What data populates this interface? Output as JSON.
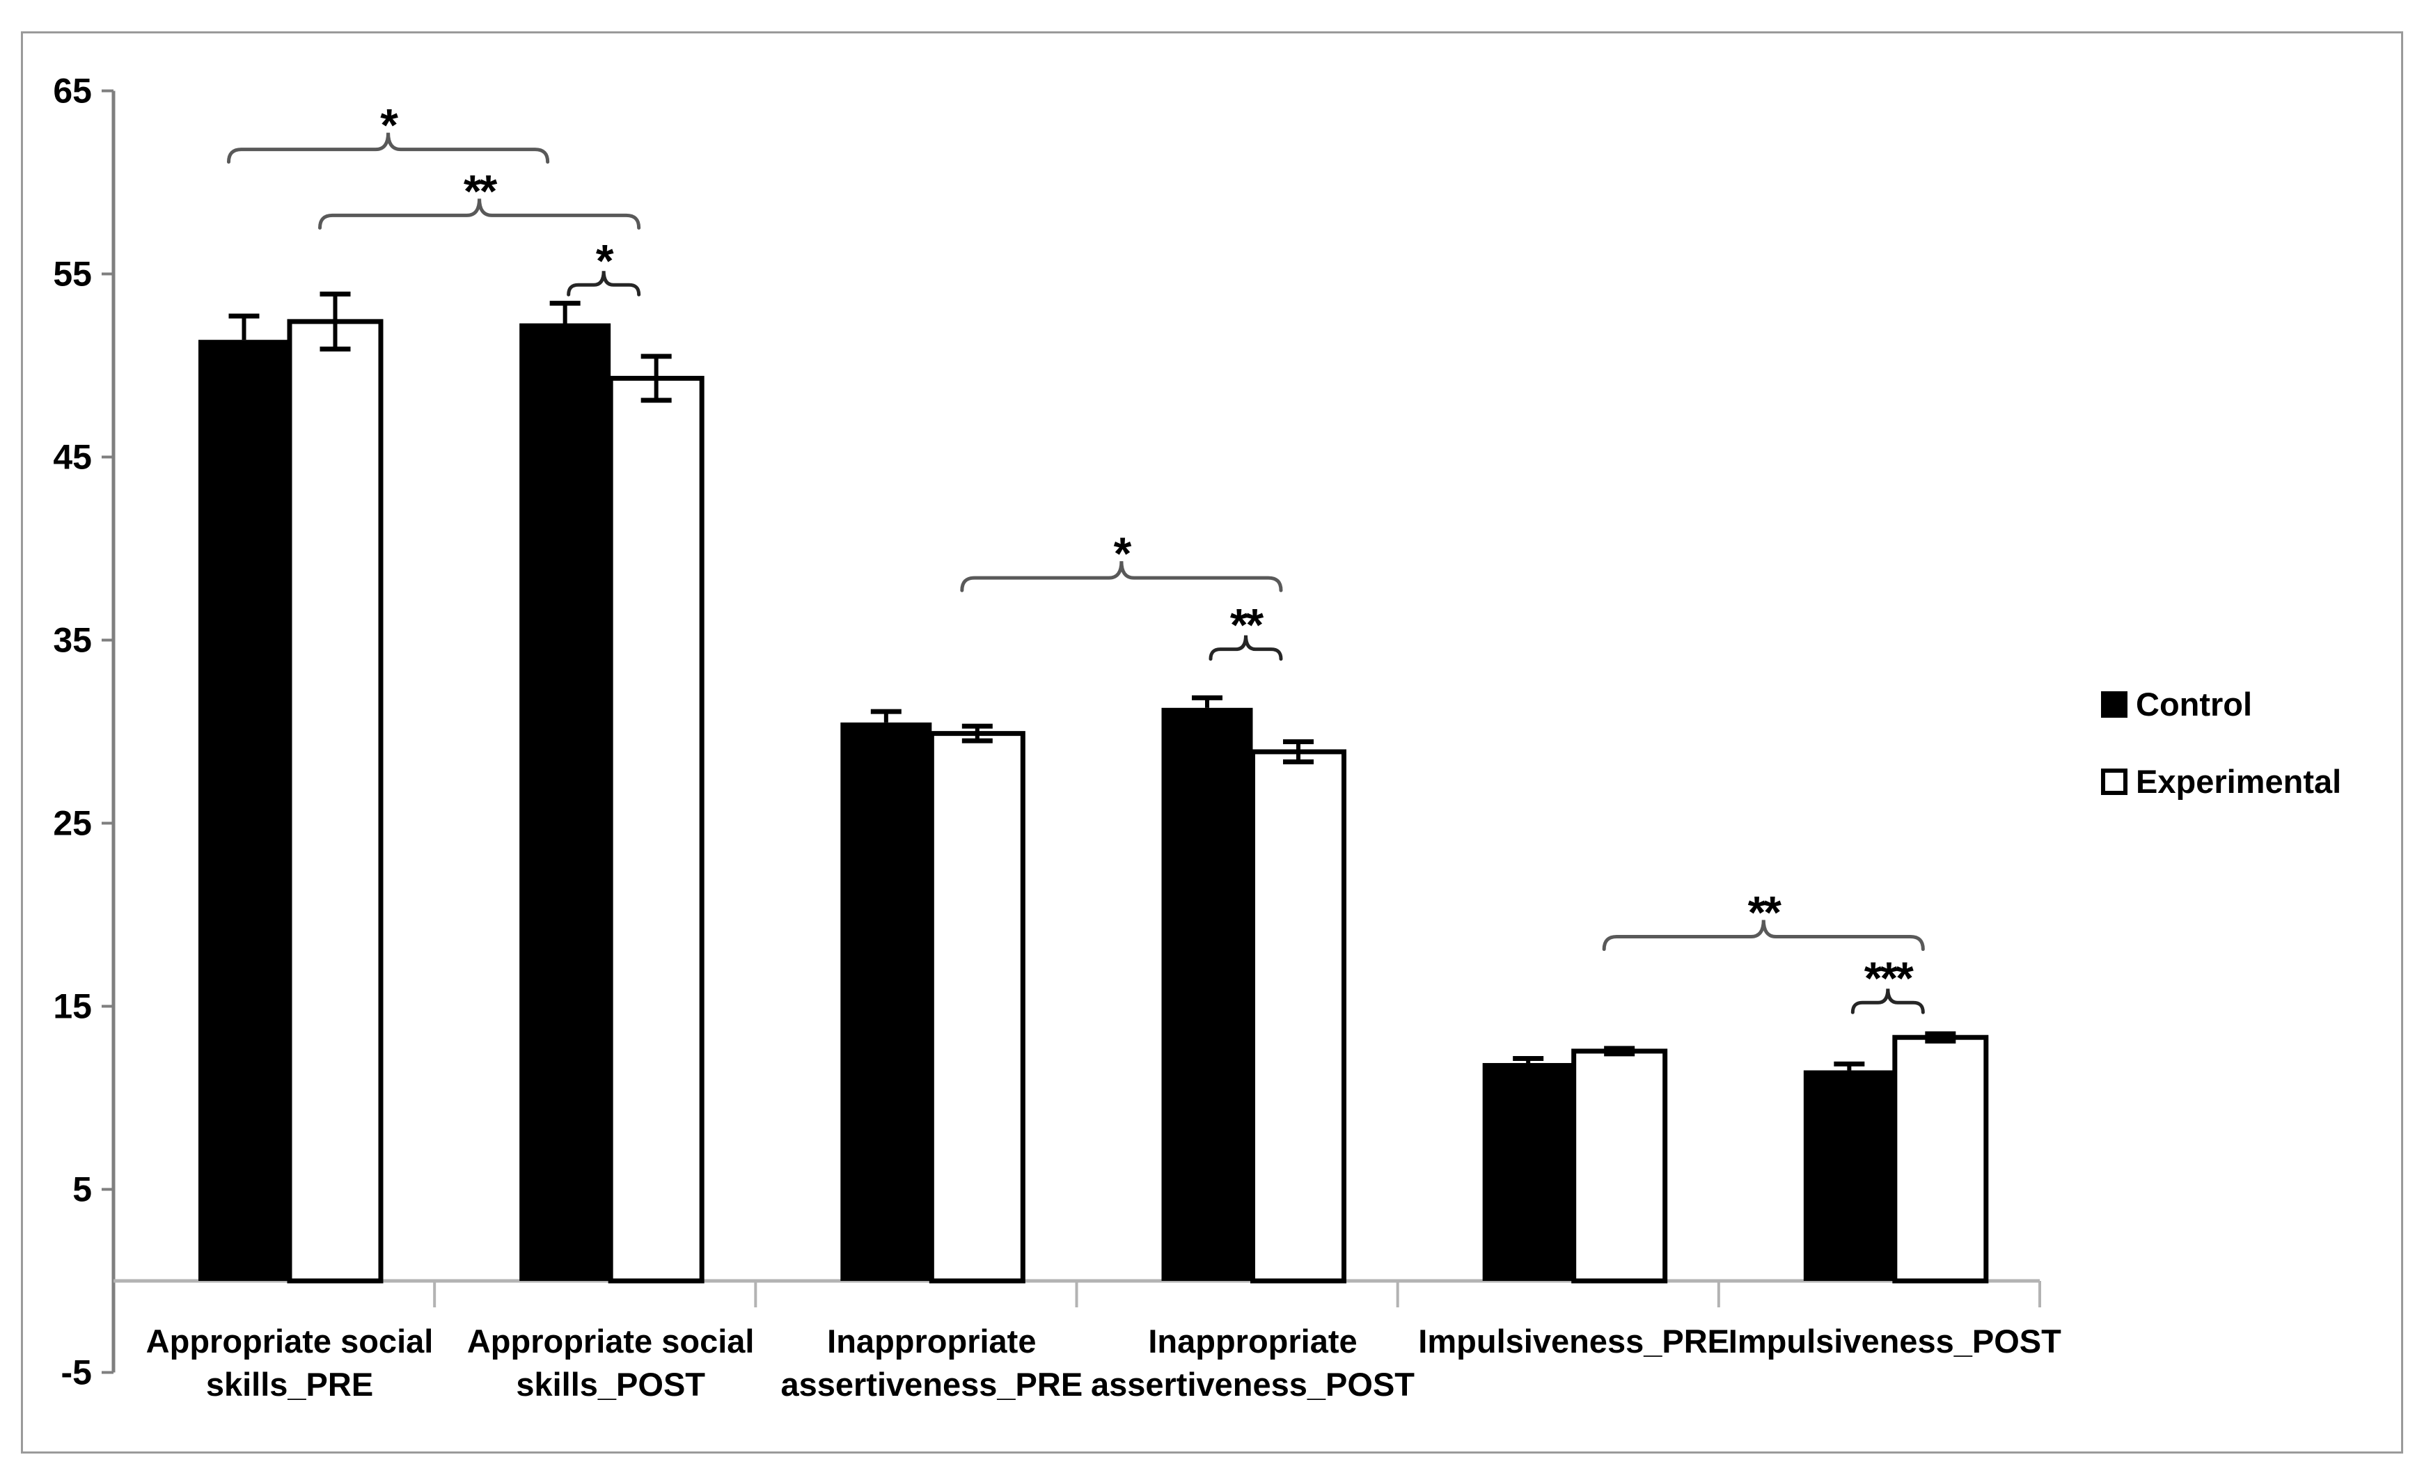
{
  "chart_data": {
    "type": "bar",
    "title": "",
    "xlabel": "",
    "ylabel": "",
    "categories": [
      "Appropriate social skills_PRE",
      "Appropriate social skills_POST",
      "Inappropriate assertiveness_PRE",
      "Inappropriate assertiveness_POST",
      "Impulsiveness_PRE",
      "Impulsiveness_POST"
    ],
    "category_label_lines": [
      [
        "Appropriate social",
        "skills_PRE"
      ],
      [
        "Appropriate social",
        "skills_POST"
      ],
      [
        "Inappropriate",
        "assertiveness_PRE"
      ],
      [
        "Inappropriate",
        "assertiveness_POST"
      ],
      [
        "Impulsiveness_PRE"
      ],
      [
        "Impulsiveness_POST"
      ]
    ],
    "series": [
      {
        "name": "Control",
        "swatch": "filled",
        "fill": "#000000",
        "values": [
          51.4,
          52.3,
          30.5,
          31.3,
          11.9,
          11.5
        ],
        "errors": [
          1.3,
          1.1,
          0.6,
          0.55,
          0.25,
          0.35
        ]
      },
      {
        "name": "Experimental",
        "swatch": "outlined",
        "fill": "#ffffff",
        "values": [
          52.4,
          49.3,
          29.9,
          28.9,
          12.55,
          13.3
        ],
        "errors": [
          1.5,
          1.2,
          0.4,
          0.55,
          0.15,
          0.2
        ]
      }
    ],
    "ylim": [
      -5,
      65
    ],
    "yticks": [
      65,
      55,
      45,
      35,
      25,
      15,
      5,
      -5
    ],
    "ytick_step": 10,
    "grid": false,
    "error_bars": true,
    "legend_position": "right-middle",
    "significance_brackets": [
      {
        "label": "*",
        "style": "span",
        "from": {
          "group": 0,
          "series": 0
        },
        "to": {
          "group": 1,
          "series": 0
        },
        "level": 61.8
      },
      {
        "label": "**",
        "style": "span",
        "from": {
          "group": 0,
          "series": 1
        },
        "to": {
          "group": 1,
          "series": 1
        },
        "level": 58.2
      },
      {
        "label": "*",
        "style": "pair",
        "from": {
          "group": 1,
          "series": 0
        },
        "to": {
          "group": 1,
          "series": 1
        },
        "level": 54.4
      },
      {
        "label": "*",
        "style": "span",
        "from": {
          "group": 2,
          "series": 1
        },
        "to": {
          "group": 3,
          "series": 1
        },
        "level": 38.4
      },
      {
        "label": "**",
        "style": "pair",
        "from": {
          "group": 3,
          "series": 0
        },
        "to": {
          "group": 3,
          "series": 1
        },
        "level": 34.5
      },
      {
        "label": "**",
        "style": "span",
        "from": {
          "group": 4,
          "series": 1
        },
        "to": {
          "group": 5,
          "series": 1
        },
        "level": 18.8
      },
      {
        "label": "***",
        "style": "pair",
        "from": {
          "group": 5,
          "series": 0
        },
        "to": {
          "group": 5,
          "series": 1
        },
        "level": 15.2
      }
    ]
  },
  "legend": {
    "items": [
      {
        "label": "Control",
        "swatch": "filled"
      },
      {
        "label": "Experimental",
        "swatch": "outlined"
      }
    ]
  },
  "colors": {
    "background": "#ffffff",
    "bar_fill_control": "#000000",
    "bar_fill_experimental": "#ffffff",
    "bar_stroke": "#000000",
    "error_bar": "#000000",
    "y_axis": "#7f7f7f",
    "x_axis": "#b3b3b3",
    "bracket_span": "#595959",
    "bracket_pair": "#262626",
    "text": "#000000",
    "frame_border": "#9a9a9a"
  }
}
